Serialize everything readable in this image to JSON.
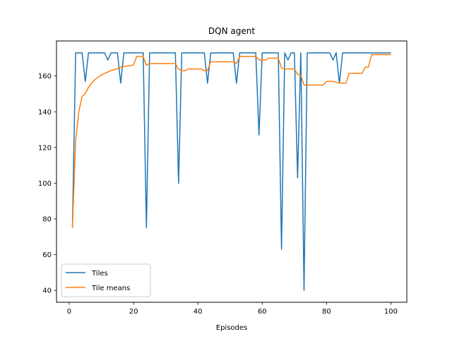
{
  "chart_data": {
    "type": "line",
    "title": "DQN agent",
    "xlabel": "Episodes",
    "ylabel": "",
    "xlim": [
      -3.95,
      104.95
    ],
    "ylim": [
      33.35,
      179.65
    ],
    "xticks": [
      0,
      20,
      40,
      60,
      80,
      100
    ],
    "yticks": [
      40,
      60,
      80,
      100,
      120,
      140,
      160
    ],
    "grid": false,
    "legend_position": "lower-left",
    "series": [
      {
        "name": "Tiles",
        "color": "#1f77b4",
        "x": [
          1,
          2,
          3,
          4,
          5,
          6,
          7,
          8,
          9,
          10,
          11,
          12,
          13,
          14,
          15,
          16,
          17,
          18,
          19,
          20,
          21,
          22,
          23,
          24,
          25,
          26,
          27,
          28,
          29,
          30,
          31,
          32,
          33,
          34,
          35,
          36,
          37,
          38,
          39,
          40,
          41,
          42,
          43,
          44,
          45,
          46,
          47,
          48,
          49,
          50,
          51,
          52,
          53,
          54,
          55,
          56,
          57,
          58,
          59,
          60,
          61,
          62,
          63,
          64,
          65,
          66,
          67,
          68,
          69,
          70,
          71,
          72,
          73,
          74,
          75,
          76,
          77,
          78,
          79,
          80,
          81,
          82,
          83,
          84,
          85,
          86,
          87,
          88,
          89,
          90,
          91,
          92,
          93,
          94,
          95,
          96,
          97,
          98,
          99,
          100
        ],
        "values": [
          75,
          173,
          173,
          173,
          157,
          173,
          173,
          173,
          173,
          173,
          173,
          169,
          173,
          173,
          173,
          156,
          173,
          173,
          173,
          173,
          173,
          173,
          173,
          75,
          173,
          173,
          173,
          173,
          173,
          173,
          173,
          173,
          173,
          100,
          173,
          173,
          173,
          173,
          173,
          173,
          173,
          173,
          156,
          173,
          173,
          173,
          173,
          173,
          173,
          173,
          173,
          156,
          173,
          173,
          173,
          173,
          173,
          173,
          127,
          173,
          173,
          173,
          173,
          173,
          173,
          63,
          173,
          169,
          173,
          173,
          103,
          173,
          40,
          173,
          173,
          173,
          173,
          173,
          173,
          173,
          173,
          169,
          173,
          156,
          173,
          173,
          173,
          173,
          173,
          173,
          173,
          173,
          173,
          173,
          173,
          173,
          173,
          173,
          173,
          173
        ]
      },
      {
        "name": "Tile means",
        "color": "#ff7f0e",
        "x": [
          1,
          2,
          3,
          4,
          5,
          6,
          7,
          8,
          9,
          10,
          11,
          12,
          13,
          14,
          15,
          16,
          17,
          18,
          19,
          20,
          21,
          22,
          23,
          24,
          25,
          26,
          27,
          28,
          29,
          30,
          31,
          32,
          33,
          34,
          35,
          36,
          37,
          38,
          39,
          40,
          41,
          42,
          43,
          44,
          45,
          46,
          47,
          48,
          49,
          50,
          51,
          52,
          53,
          54,
          55,
          56,
          57,
          58,
          59,
          60,
          61,
          62,
          63,
          64,
          65,
          66,
          67,
          68,
          69,
          70,
          71,
          72,
          73,
          74,
          75,
          76,
          77,
          78,
          79,
          80,
          81,
          82,
          83,
          84,
          85,
          86,
          87,
          88,
          89,
          90,
          91,
          92,
          93,
          94,
          95,
          96,
          97,
          98,
          99,
          100
        ],
        "values": [
          75,
          124,
          140.3,
          148.5,
          150.2,
          153.7,
          156.1,
          158,
          159.4,
          160.6,
          161.5,
          162.3,
          163.1,
          163.6,
          164.1,
          165,
          165.3,
          165.6,
          165.8,
          166.2,
          171,
          171,
          171,
          166,
          167,
          167,
          167,
          167,
          167,
          167,
          167,
          167,
          167,
          164,
          163,
          163,
          164,
          164,
          164,
          164,
          164,
          163,
          163,
          168,
          168,
          168,
          168,
          168,
          168,
          168,
          168,
          167,
          171,
          171,
          171,
          171,
          171,
          171,
          169,
          169,
          169,
          170,
          170,
          170,
          170,
          164.5,
          164,
          164,
          164,
          164,
          161,
          160.5,
          155,
          155,
          155,
          155,
          155,
          155,
          155,
          157,
          157,
          157,
          156.5,
          156,
          156,
          156,
          161.5,
          161.5,
          161.5,
          161.5,
          161.5,
          165,
          165,
          172,
          172,
          172,
          172,
          172,
          172,
          172
        ]
      }
    ]
  }
}
